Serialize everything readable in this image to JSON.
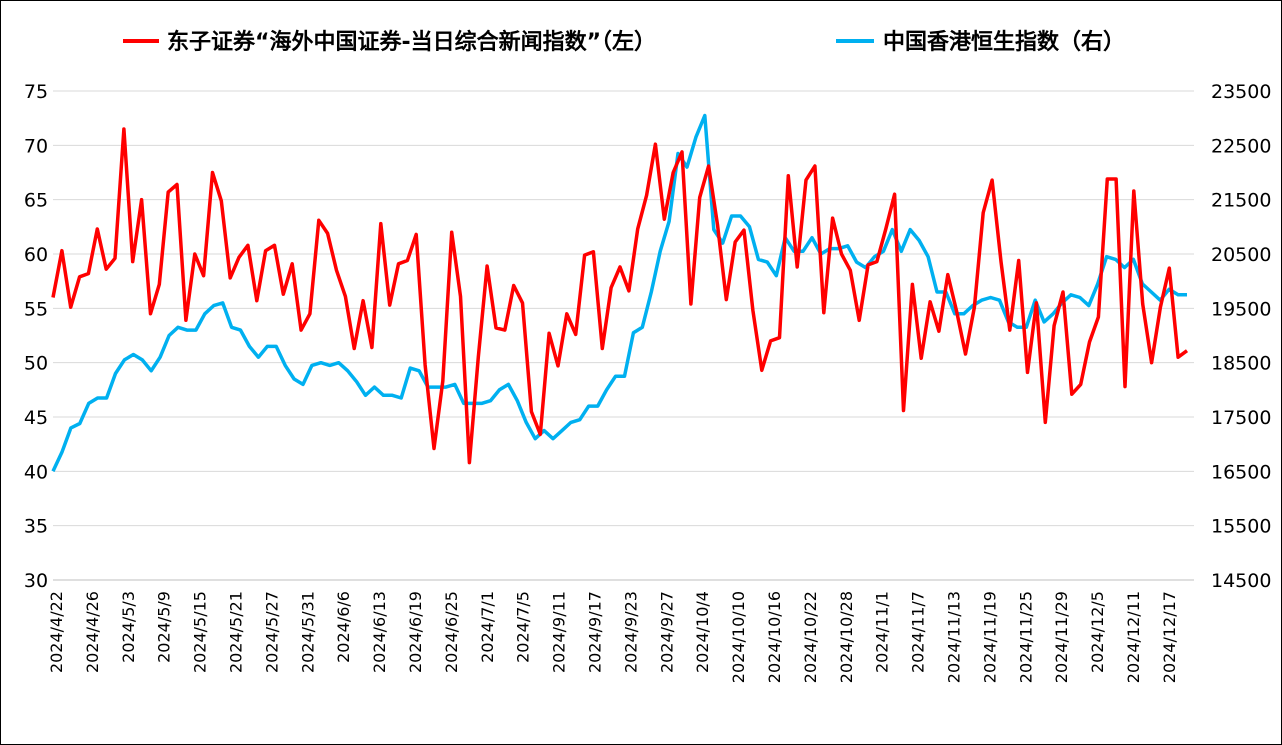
{
  "chart_data": {
    "type": "line",
    "legend_position": "top",
    "grid": "horizontal",
    "colors": {
      "left_series": "#ff0000",
      "right_series": "#00b0f0",
      "grid": "#d9d9d9"
    },
    "y_left": {
      "min": 30,
      "max": 75,
      "step": 5,
      "ticks": [
        "75",
        "70",
        "65",
        "60",
        "55",
        "50",
        "45",
        "40",
        "35",
        "30"
      ]
    },
    "y_right": {
      "min": 14500,
      "max": 23500,
      "step": 1000,
      "ticks": [
        "23500",
        "22500",
        "21500",
        "20500",
        "19500",
        "18500",
        "17500",
        "16500",
        "15500",
        "14500"
      ]
    },
    "x_tick_labels": [
      "2024/4/22",
      "2024/4/26",
      "2024/5/3",
      "2024/5/9",
      "2024/5/15",
      "2024/5/21",
      "2024/5/27",
      "2024/5/31",
      "2024/6/6",
      "2024/6/13",
      "2024/6/19",
      "2024/6/25",
      "2024/7/1",
      "2024/7/5",
      "2024/9/11",
      "2024/9/17",
      "2024/9/23",
      "2024/9/27",
      "2024/10/4",
      "2024/10/10",
      "2024/10/16",
      "2024/10/22",
      "2024/10/28",
      "2024/11/1",
      "2024/11/7",
      "2024/11/13",
      "2024/11/19",
      "2024/11/25",
      "2024/11/29",
      "2024/12/5",
      "2024/12/11",
      "2024/12/17"
    ],
    "series": [
      {
        "name": "东子证券“海外中国证券-当日综合新闻指数”（左）",
        "axis": "left",
        "values": [
          56,
          60.3,
          55.1,
          57.9,
          58.2,
          62.3,
          58.6,
          59.6,
          71.5,
          59.3,
          65,
          54.5,
          57.2,
          65.7,
          66.4,
          53.9,
          60,
          58,
          67.5,
          64.9,
          57.8,
          59.7,
          60.8,
          55.7,
          60.3,
          60.8,
          56.3,
          59.1,
          53,
          54.5,
          63.1,
          61.9,
          58.5,
          56.1,
          51.3,
          55.7,
          51.4,
          62.8,
          55.3,
          59.1,
          59.4,
          61.8,
          49.8,
          42.1,
          48.3,
          62,
          56.1,
          40.8,
          50.5,
          58.9,
          53.2,
          53,
          57.1,
          55.5,
          45.5,
          43.4,
          52.7,
          49.7,
          54.5,
          52.6,
          59.9,
          60.2,
          51.3,
          56.9,
          58.8,
          56.6,
          62.3,
          65.4,
          70.1,
          63.2,
          67.5,
          69.4,
          55.4,
          65.2,
          68.1,
          62.7,
          55.8,
          61.1,
          62.2,
          54.8,
          49.3,
          52,
          52.3,
          67.2,
          58.8,
          66.8,
          68.1,
          54.6,
          63.3,
          60,
          58.5,
          53.9,
          59,
          59.3,
          62.3,
          65.5,
          45.6,
          57.2,
          50.4,
          55.6,
          52.9,
          58.1,
          54.7,
          50.8,
          55.1,
          63.8,
          66.8,
          59.3,
          53,
          59.4,
          49.1,
          55.5,
          44.5,
          53.4,
          56.5,
          47.1,
          48,
          51.9,
          54.2,
          66.9,
          66.9,
          47.8,
          65.8,
          55.4,
          50,
          55.1,
          58.7,
          50.5,
          51.1
        ]
      },
      {
        "name": "中国香港恒生指数（右）",
        "axis": "right",
        "values": [
          16500,
          16850,
          17300,
          17380,
          17750,
          17850,
          17850,
          18300,
          18550,
          18650,
          18550,
          18350,
          18600,
          19000,
          19150,
          19100,
          19100,
          19400,
          19550,
          19600,
          19150,
          19100,
          18800,
          18600,
          18800,
          18800,
          18450,
          18200,
          18100,
          18450,
          18500,
          18450,
          18500,
          18350,
          18150,
          17900,
          18050,
          17900,
          17900,
          17850,
          18400,
          18350,
          18050,
          18050,
          18050,
          18100,
          17750,
          17750,
          17750,
          17800,
          18000,
          18100,
          17800,
          17400,
          17100,
          17250,
          17100,
          17250,
          17400,
          17450,
          17700,
          17700,
          18000,
          18250,
          18250,
          19050,
          19150,
          19800,
          20550,
          21100,
          22350,
          22100,
          22650,
          23050,
          20950,
          20700,
          21200,
          21200,
          21000,
          20400,
          20350,
          20100,
          20800,
          20550,
          20550,
          20800,
          20500,
          20600,
          20600,
          20650,
          20350,
          20250,
          20450,
          20550,
          20950,
          20550,
          20950,
          20750,
          20450,
          19800,
          19800,
          19400,
          19400,
          19550,
          19650,
          19700,
          19650,
          19250,
          19150,
          19150,
          19650,
          19250,
          19400,
          19600,
          19750,
          19700,
          19550,
          19950,
          20450,
          20400,
          20250,
          20400,
          19950,
          19800,
          19650,
          19850,
          19750,
          19750
        ]
      }
    ]
  }
}
